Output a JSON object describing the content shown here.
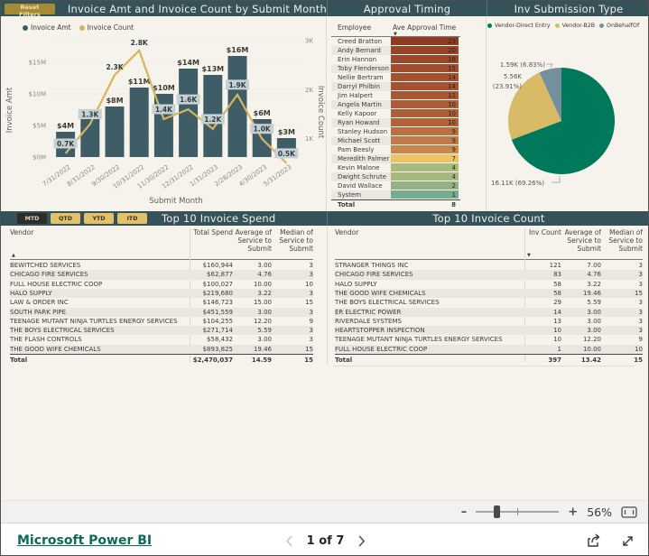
{
  "theme": {
    "page_bg": "#f5f3eb",
    "band_bg": "#35525b",
    "bar_color": "#3f5d66",
    "line_color": "#d8b45c",
    "count_box_bg": "#c6d0d2",
    "gold_button_bg": "#e3c169",
    "reset_button_bg": "#a58b33",
    "selected_button_bg": "#2d2d29",
    "alt_row_bg": "#e9e7df",
    "footer_link_color": "#0b6a5b"
  },
  "top_band": {
    "reset_button": "Reset Filters",
    "combo_title": "Invoice Amt and Invoice Count by Submit Month",
    "approval_title": "Approval Timing",
    "pie_title": "Inv Submission Type"
  },
  "chart_data": [
    {
      "type": "bar",
      "subtype": "combo-bar-line",
      "title": "Invoice Amt and Invoice Count by Submit Month",
      "categories": [
        "7/31/2022",
        "8/31/2022",
        "9/30/2022",
        "10/31/2022",
        "11/30/2022",
        "12/31/2022",
        "1/31/2023",
        "2/28/2023",
        "4/30/2023",
        "5/31/2023"
      ],
      "series": [
        {
          "name": "Invoice Amt",
          "type": "bar",
          "unit": "$M",
          "color": "#3f5d66",
          "values": [
            4,
            6,
            8,
            11,
            10,
            14,
            13,
            16,
            6,
            3
          ],
          "labels": [
            "$4M",
            "$6M",
            "$8M",
            "$11M",
            "$10M",
            "$14M",
            "$13M",
            "$16M",
            "$6M",
            "$3M"
          ]
        },
        {
          "name": "Invoice Count",
          "type": "line",
          "unit": "K",
          "color": "#d8b45c",
          "values": [
            0.7,
            1.3,
            2.3,
            2.8,
            1.4,
            1.6,
            1.2,
            1.9,
            1.0,
            0.5
          ],
          "labels": [
            "0.7K",
            "1.3K",
            "2.3K",
            "2.8K",
            "1.4K",
            "1.6K",
            "1.2K",
            "1.9K",
            "1.0K",
            "0.5K"
          ],
          "boxed": [
            true,
            true,
            false,
            false,
            true,
            true,
            true,
            true,
            true,
            true
          ]
        }
      ],
      "xlabel": "Submit Month",
      "y_left": {
        "title": "Invoice Amt",
        "ticks": [
          "$0M",
          "$5M",
          "$10M",
          "$15M"
        ],
        "range": [
          0,
          17.5
        ]
      },
      "y_right": {
        "title": "Invoice Count",
        "ticks": [
          "1K",
          "2K",
          "3K"
        ],
        "range": [
          0,
          3.5
        ]
      },
      "grid": true,
      "legend_position": "top-left"
    },
    {
      "type": "pie",
      "title": "Inv Submission Type",
      "slices": [
        {
          "label": "Vendor-Direct Entry",
          "value_label": "16.11K (69.26%)",
          "value_k": 16.11,
          "pct": 69.26,
          "color": "#00785c"
        },
        {
          "label": "Vendor-B2B",
          "value_label": "5.56K (23.91%)",
          "value_k": 5.56,
          "pct": 23.91,
          "color": "#d8ba67"
        },
        {
          "label": "OnBehalfOf",
          "value_label": "1.59K (6.83%)",
          "value_k": 1.59,
          "pct": 6.83,
          "color": "#74909e"
        }
      ],
      "legend_position": "top"
    }
  ],
  "approval": {
    "columns": [
      "Employee",
      "Ave Approval Time"
    ],
    "sort_icon": "down",
    "rows": [
      {
        "name": "Creed Bratton",
        "value": 23,
        "color": "#8e3b24"
      },
      {
        "name": "Andy Bernard",
        "value": 20,
        "color": "#97432a"
      },
      {
        "name": "Erin Hannon",
        "value": 18,
        "color": "#9b472c"
      },
      {
        "name": "Toby Flenderson",
        "value": 15,
        "color": "#a04d2f"
      },
      {
        "name": "Nellie Bertram",
        "value": 14,
        "color": "#a35130"
      },
      {
        "name": "Darryl Philbin",
        "value": 14,
        "color": "#a45230"
      },
      {
        "name": "Jim Halpert",
        "value": 12,
        "color": "#a85734"
      },
      {
        "name": "Angela Martin",
        "value": 10,
        "color": "#ac5c36"
      },
      {
        "name": "Kelly Kapoor",
        "value": 10,
        "color": "#ae5f37"
      },
      {
        "name": "Ryan Howard",
        "value": 10,
        "color": "#b06238"
      },
      {
        "name": "Stanley Hudson",
        "value": 9,
        "color": "#ba7142"
      },
      {
        "name": "Michael Scott",
        "value": 9,
        "color": "#c07a47"
      },
      {
        "name": "Pam Beesly",
        "value": 9,
        "color": "#c9864d"
      },
      {
        "name": "Meredith Palmer",
        "value": 7,
        "color": "#ecc463"
      },
      {
        "name": "Kevin Malone",
        "value": 4,
        "color": "#a9ba7f"
      },
      {
        "name": "Dwight Schrute",
        "value": 4,
        "color": "#a6b87e"
      },
      {
        "name": "David Wallace",
        "value": 2,
        "color": "#95b285"
      },
      {
        "name": "System",
        "value": 1,
        "color": "#74ac90"
      }
    ],
    "total": {
      "label": "Total",
      "value": 8
    }
  },
  "spend_table": {
    "band_title": "Top 10 Invoice Spend",
    "buttons": [
      {
        "label": "MTD",
        "selected": true
      },
      {
        "label": "QTD",
        "selected": false
      },
      {
        "label": "YTD",
        "selected": false
      },
      {
        "label": "ITD",
        "selected": false
      }
    ],
    "columns": [
      "Vendor",
      "Total Spend",
      "Average of Service to Submit",
      "Median of Service to Submit"
    ],
    "sort_column": "Vendor",
    "sort_icon": "up",
    "rows": [
      [
        "BEWITCHED SERVICES",
        "$160,944",
        "3.00",
        "3"
      ],
      [
        "CHICAGO FIRE SERVICES",
        "$62,877",
        "4.76",
        "3"
      ],
      [
        "FULL HOUSE ELECTRIC COOP",
        "$100,027",
        "10.00",
        "10"
      ],
      [
        "HALO SUPPLY",
        "$219,680",
        "3.22",
        "3"
      ],
      [
        "LAW & ORDER INC",
        "$146,723",
        "15.00",
        "15"
      ],
      [
        "SOUTH PARK PIPE",
        "$451,559",
        "3.00",
        "3"
      ],
      [
        "TEENAGE MUTANT NINJA TURTLES ENERGY SERVICES",
        "$104,255",
        "12.20",
        "9"
      ],
      [
        "THE BOYS ELECTRICAL SERVICES",
        "$271,714",
        "5.59",
        "3"
      ],
      [
        "THE FLASH CONTROLS",
        "$58,432",
        "3.00",
        "3"
      ],
      [
        "THE GOOD WIFE CHEMICALS",
        "$893,825",
        "19.46",
        "15"
      ]
    ],
    "total": [
      "Total",
      "$2,470,037",
      "14.59",
      "15"
    ]
  },
  "count_table": {
    "band_title": "Top 10 Invoice Count",
    "columns": [
      "Vendor",
      "Inv Count",
      "Average of Service to Submit",
      "Median of Service to Submit"
    ],
    "sort_column": "Inv Count",
    "sort_icon": "down",
    "rows": [
      [
        "STRANGER THINGS INC",
        "121",
        "7.00",
        "3"
      ],
      [
        "CHICAGO FIRE SERVICES",
        "83",
        "4.76",
        "3"
      ],
      [
        "HALO SUPPLY",
        "58",
        "3.22",
        "3"
      ],
      [
        "THE GOOD WIFE CHEMICALS",
        "58",
        "19.46",
        "15"
      ],
      [
        "THE BOYS ELECTRICAL SERVICES",
        "29",
        "5.59",
        "3"
      ],
      [
        "ER ELECTRIC POWER",
        "14",
        "3.00",
        "3"
      ],
      [
        "RIVERDALE SYSTEMS",
        "13",
        "3.00",
        "3"
      ],
      [
        "HEARTSTOPPER INSPECTION",
        "10",
        "3.00",
        "3"
      ],
      [
        "TEENAGE MUTANT NINJA TURTLES ENERGY SERVICES",
        "10",
        "12.20",
        "9"
      ],
      [
        "FULL HOUSE ELECTRIC COOP",
        "1",
        "10.00",
        "10"
      ]
    ],
    "total": [
      "Total",
      "397",
      "13.42",
      "15"
    ]
  },
  "zoom_bar": {
    "minus": "–",
    "plus": "+",
    "zoom_level": "56%"
  },
  "footer": {
    "brand": "Microsoft Power BI",
    "page_indicator": "1 of 7"
  }
}
